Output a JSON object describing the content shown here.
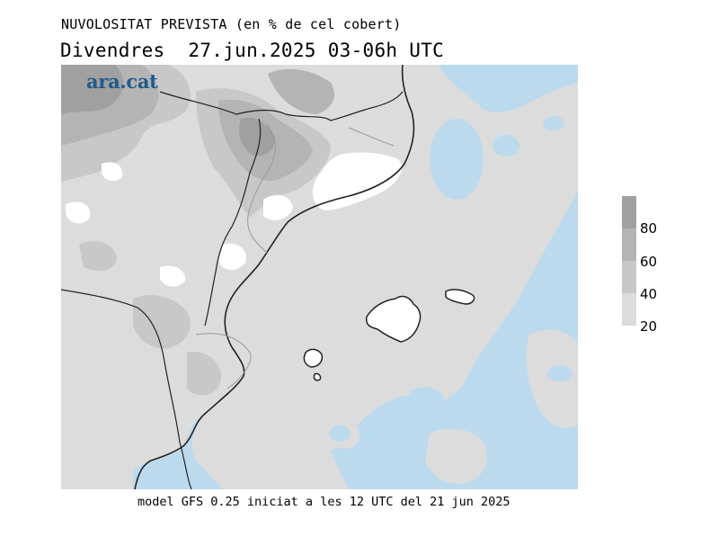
{
  "header": {
    "title": "NUVOLOSITAT PREVISTA (en % de cel cobert)",
    "subtitle": "Divendres  27.jun.2025 03-06h UTC"
  },
  "logo": {
    "text": "ara.cat",
    "color": "#1f5a8c"
  },
  "footer": {
    "text": "model GFS 0.25 iniciat a les 12 UTC del 21 jun 2025"
  },
  "legend": {
    "labels": [
      "80",
      "60",
      "40",
      "20"
    ],
    "colors": [
      "#a0a0a0",
      "#b4b4b4",
      "#c8c8c8",
      "#dcdcdc"
    ]
  },
  "colors": {
    "sea": "#bcdaee",
    "land_clear": "#ffffff",
    "cloud_20": "#dcdcdc",
    "cloud_40": "#c8c8c8",
    "cloud_60": "#b4b4b4",
    "cloud_80": "#a0a0a0",
    "coastline": "#222222",
    "borders": "#9a9a9a"
  }
}
